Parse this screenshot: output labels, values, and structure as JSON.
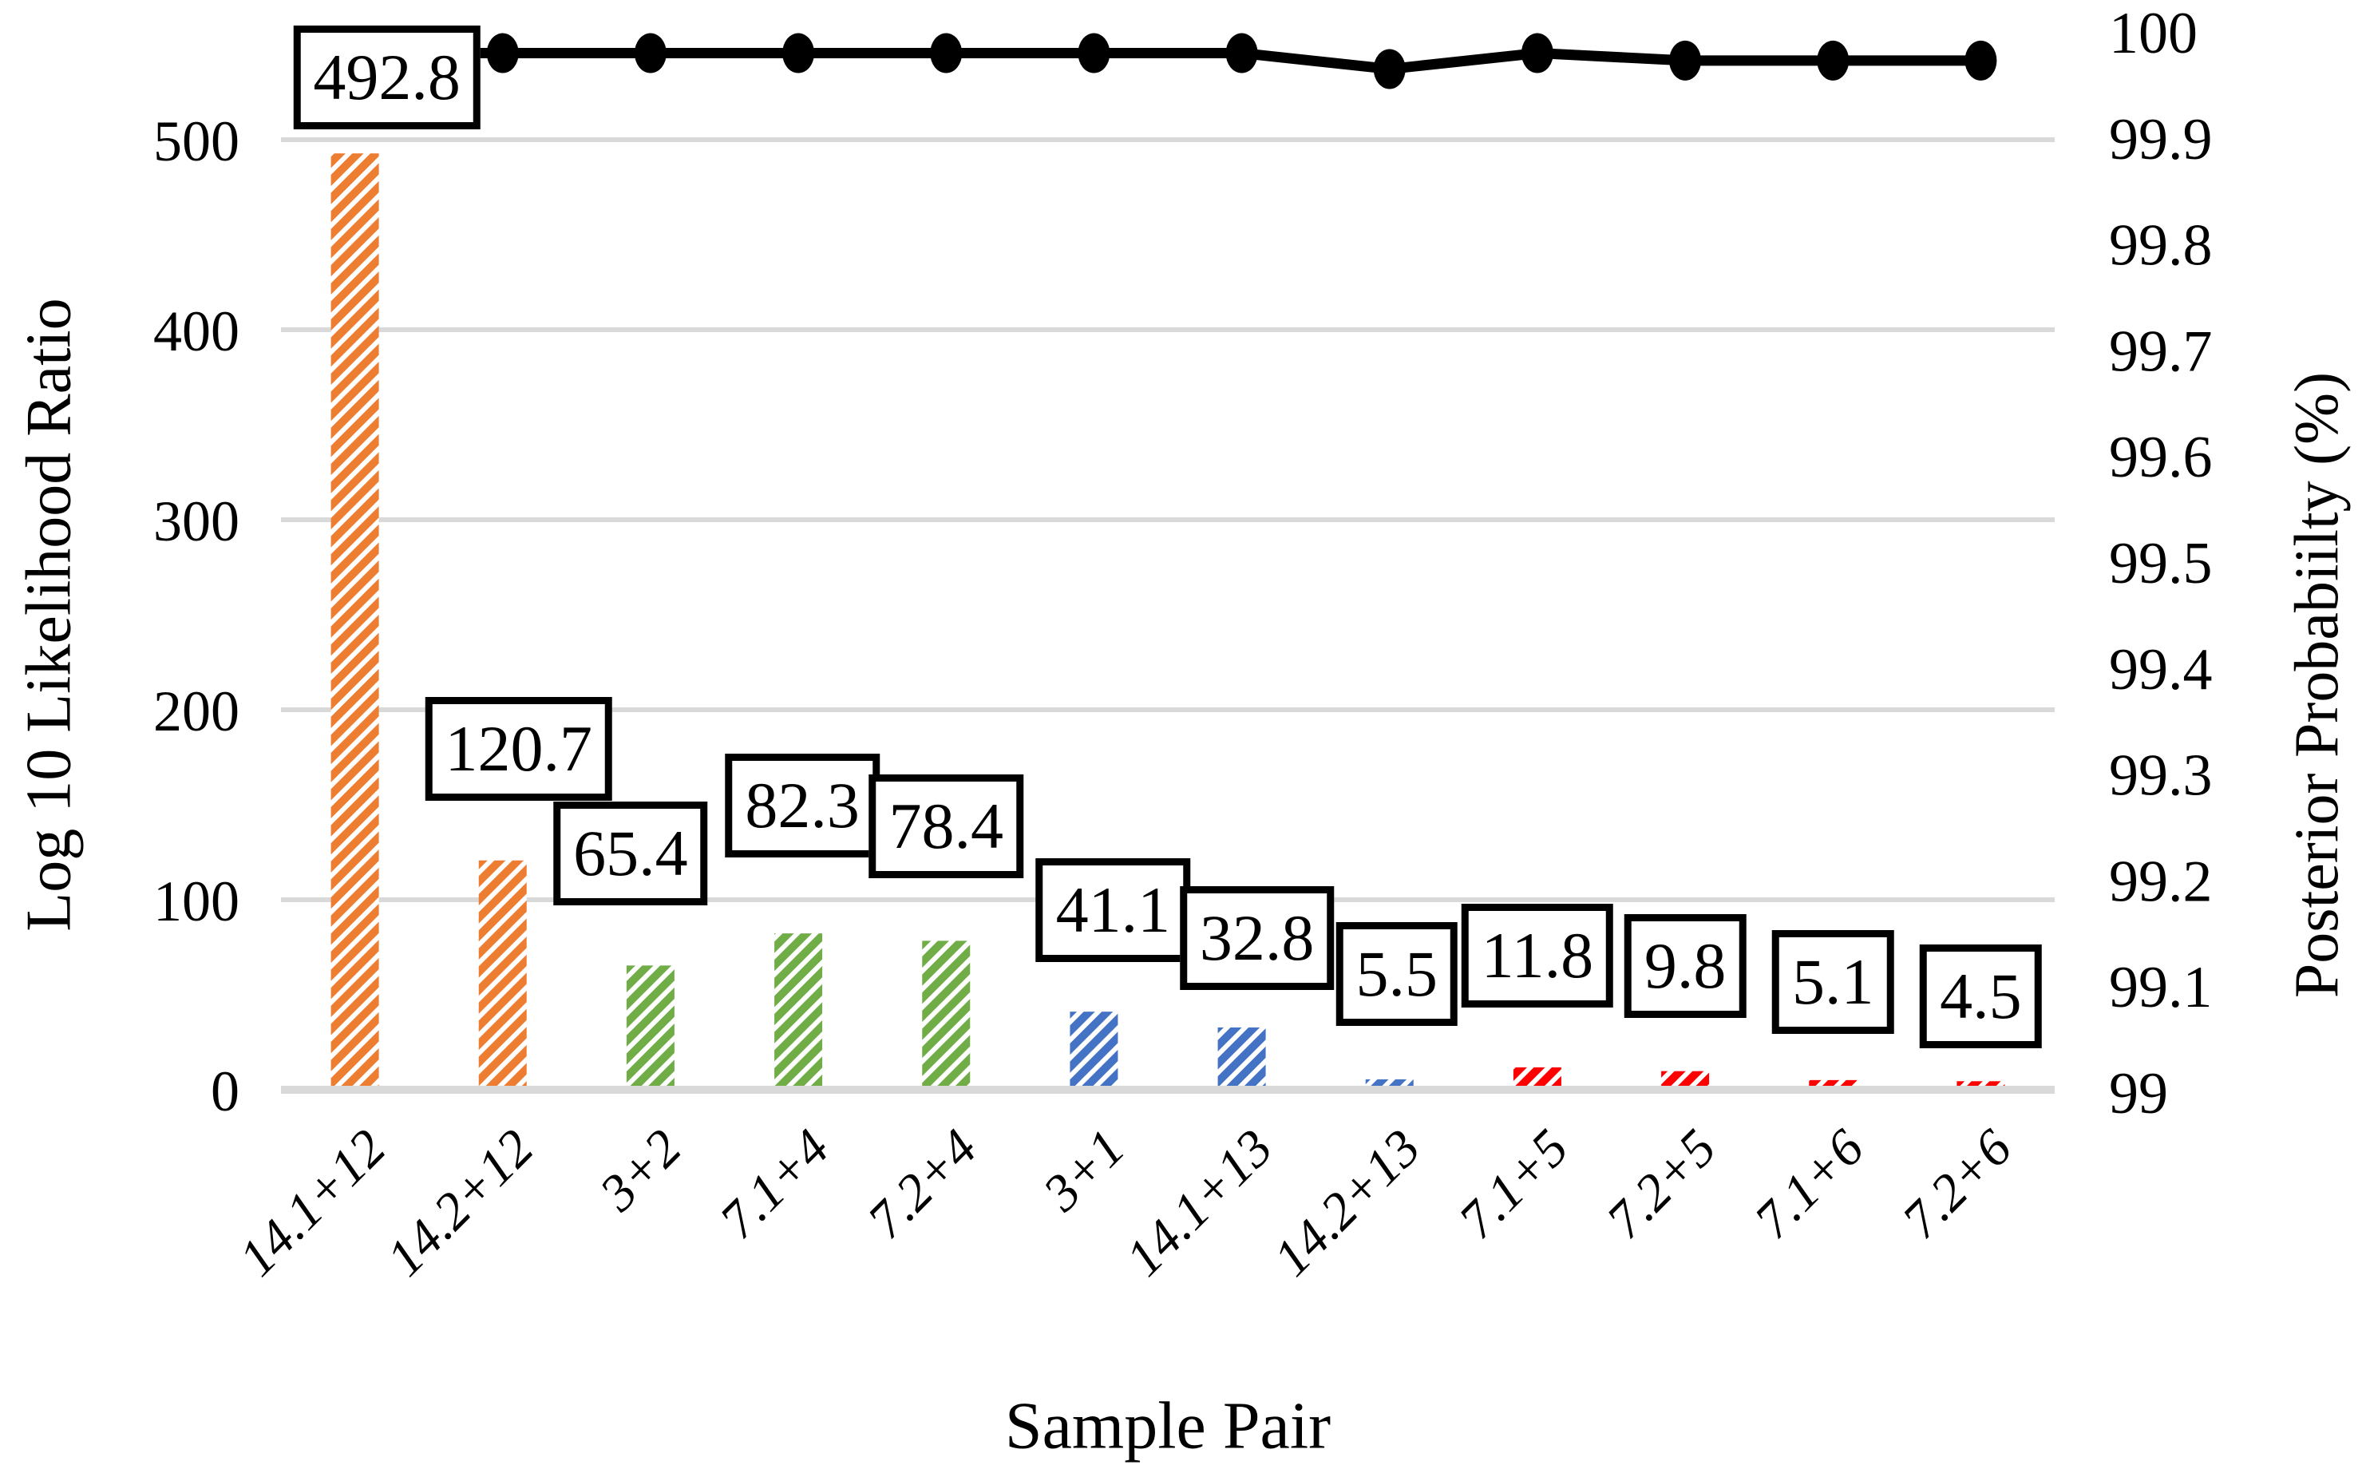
{
  "chart_data": {
    "type": "combo-bar-line",
    "title": "",
    "xlabel": "Sample Pair",
    "ylabel_left": "Log 10 Likelihood Ratio",
    "ylabel_right": "Posterior Probabiilty (%)",
    "categories": [
      "14.1+12",
      "14.2+12",
      "3+2",
      "7.1+4",
      "7.2+4",
      "3+1",
      "14.1+13",
      "14.2+13",
      "7.1+5",
      "7.2+5",
      "7.1+6",
      "7.2+6"
    ],
    "series": [
      {
        "name": "Log 10 Likelihood Ratio",
        "type": "bar",
        "axis": "left",
        "values": [
          492.8,
          120.7,
          65.4,
          82.3,
          78.4,
          41.1,
          32.8,
          5.5,
          11.8,
          9.8,
          5.1,
          4.5
        ],
        "data_labels": [
          "492.8",
          "120.7",
          "65.4",
          "82.3",
          "78.4",
          "41.1",
          "32.8",
          "5.5",
          "11.8",
          "9.8",
          "5.1",
          "4.5"
        ],
        "bar_colors": [
          "#ED7D31",
          "#ED7D31",
          "#70AD47",
          "#70AD47",
          "#70AD47",
          "#4472C4",
          "#4472C4",
          "#4472C4",
          "#FF0000",
          "#FF0000",
          "#FF0000",
          "#FF0000"
        ],
        "hatch": "diagonal-forward"
      },
      {
        "name": "Posterior Probability",
        "type": "line",
        "axis": "right",
        "values": [
          99.98,
          99.98,
          99.98,
          99.98,
          99.98,
          99.98,
          99.98,
          99.965,
          99.98,
          99.973,
          99.973,
          99.973
        ],
        "color": "#000000",
        "marker": "filled-circle"
      }
    ],
    "axes": {
      "left": {
        "min": 0,
        "max": 100,
        "ticks": [
          "0",
          "100",
          "200",
          "300",
          "400",
          "500"
        ],
        "tick_values": [
          0,
          100,
          200,
          300,
          400,
          500
        ]
      },
      "right": {
        "min": 99,
        "max": 100,
        "ticks": [
          "100",
          "99.9",
          "99.8",
          "99.7",
          "99.6",
          "99.5",
          "99.4",
          "99.3",
          "99.2",
          "99.1",
          "99"
        ],
        "tick_values": [
          100,
          99.9,
          99.8,
          99.7,
          99.6,
          99.5,
          99.4,
          99.3,
          99.2,
          99.1,
          99
        ]
      }
    },
    "grid": true,
    "legend": "none",
    "colors": {
      "grid": "#D9D9D9",
      "line": "#000000",
      "label_box_border": "#000000",
      "label_box_fill": "#FFFFFF"
    }
  }
}
